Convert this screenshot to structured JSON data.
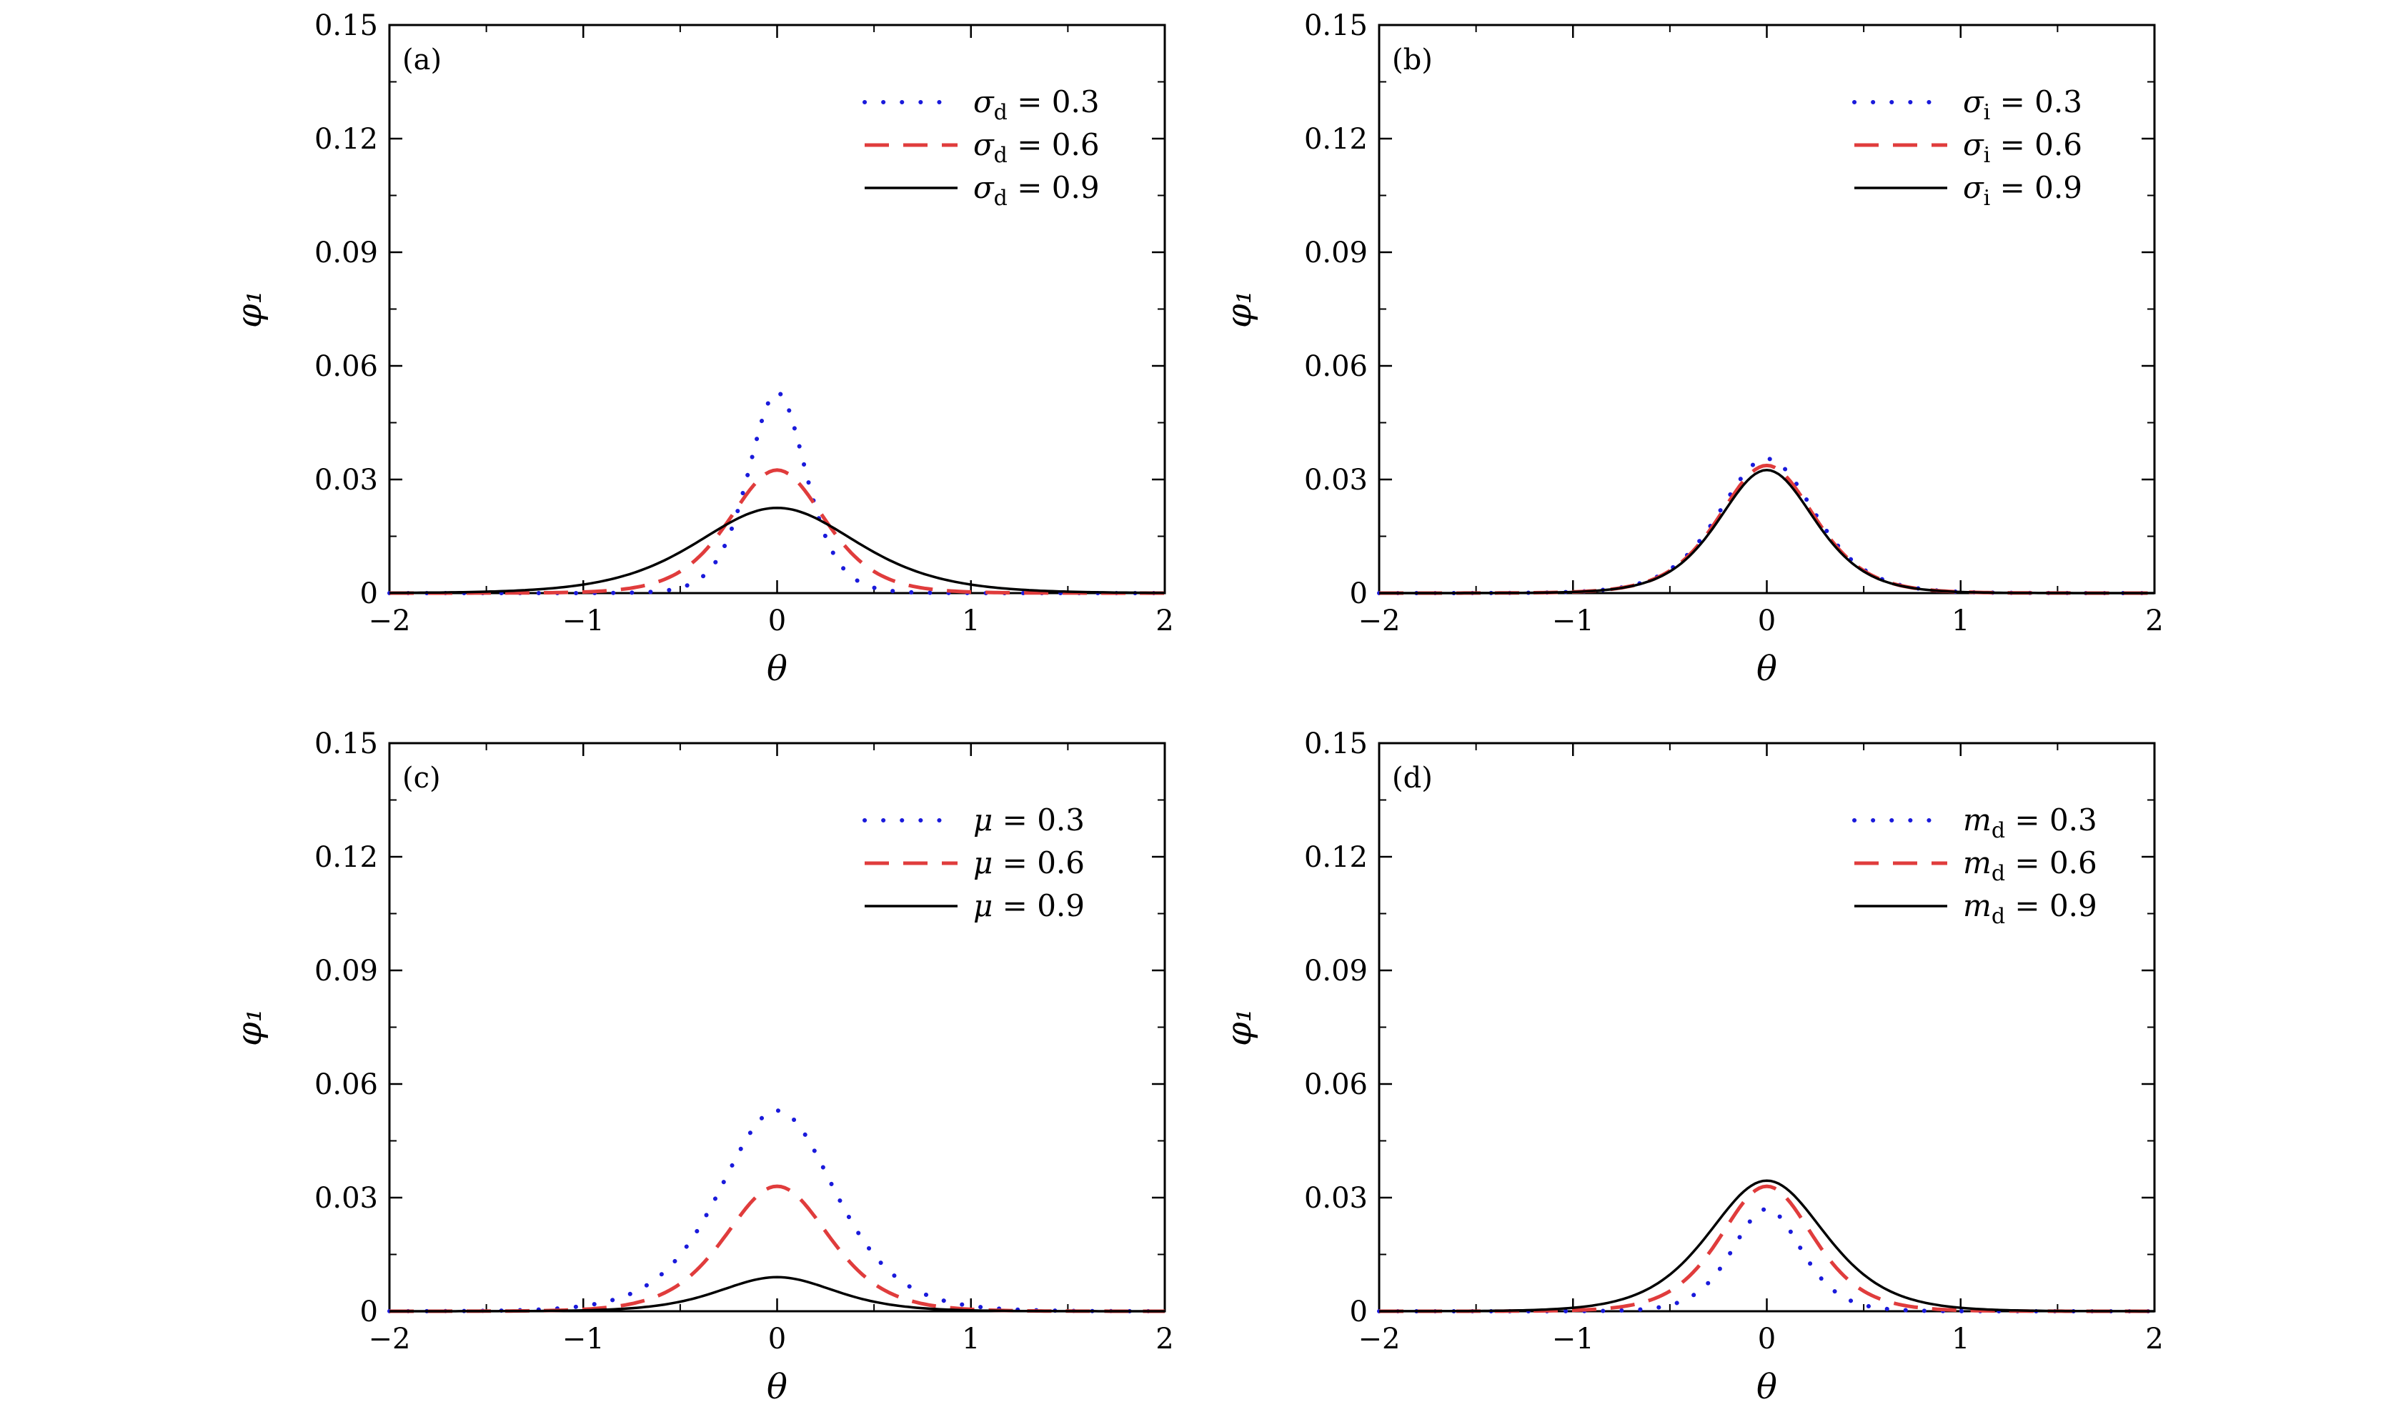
{
  "chart_data": [
    {
      "type": "line",
      "panel": "(a)",
      "xlabel": "θ",
      "ylabel": "φ₁",
      "xlim": [
        -2,
        2
      ],
      "ylim": [
        0,
        0.15
      ],
      "xticks": [
        -2,
        -1,
        0,
        1,
        2
      ],
      "xtick_labels": [
        "−2",
        "−1",
        "0",
        "1",
        "2"
      ],
      "yticks": [
        0,
        0.03,
        0.06,
        0.09,
        0.12,
        0.15
      ],
      "ytick_labels": [
        "0",
        "0.03",
        "0.06",
        "0.09",
        "0.12",
        "0.15"
      ],
      "legend_position": "top-right",
      "grid": false,
      "series": [
        {
          "name": "σd = 0.3",
          "style": "dotted",
          "color": "#1a1adb",
          "peak": 0.053,
          "width": 0.2
        },
        {
          "name": "σd = 0.6",
          "style": "dashed",
          "color": "#e03c3c",
          "peak": 0.0325,
          "width": 0.33
        },
        {
          "name": "σd = 0.9",
          "style": "solid",
          "color": "#000000",
          "peak": 0.0225,
          "width": 0.55
        }
      ]
    },
    {
      "type": "line",
      "panel": "(b)",
      "xlabel": "θ",
      "ylabel": "φ₁",
      "xlim": [
        -2,
        2
      ],
      "ylim": [
        0,
        0.15
      ],
      "xticks": [
        -2,
        -1,
        0,
        1,
        2
      ],
      "xtick_labels": [
        "−2",
        "−1",
        "0",
        "1",
        "2"
      ],
      "yticks": [
        0,
        0.03,
        0.06,
        0.09,
        0.12,
        0.15
      ],
      "ytick_labels": [
        "0",
        "0.03",
        "0.06",
        "0.09",
        "0.12",
        "0.15"
      ],
      "legend_position": "top-right",
      "grid": false,
      "series": [
        {
          "name": "σi = 0.3",
          "style": "dotted",
          "color": "#1a1adb",
          "peak": 0.0355,
          "width": 0.33
        },
        {
          "name": "σi = 0.6",
          "style": "dashed",
          "color": "#e03c3c",
          "peak": 0.0337,
          "width": 0.33
        },
        {
          "name": "σi = 0.9",
          "style": "solid",
          "color": "#000000",
          "peak": 0.0325,
          "width": 0.33
        }
      ]
    },
    {
      "type": "line",
      "panel": "(c)",
      "xlabel": "θ",
      "ylabel": "φ₁",
      "xlim": [
        -2,
        2
      ],
      "ylim": [
        0,
        0.15
      ],
      "xticks": [
        -2,
        -1,
        0,
        1,
        2
      ],
      "xtick_labels": [
        "−2",
        "−1",
        "0",
        "1",
        "2"
      ],
      "yticks": [
        0,
        0.03,
        0.06,
        0.09,
        0.12,
        0.15
      ],
      "ytick_labels": [
        "0",
        "0.03",
        "0.06",
        "0.09",
        "0.12",
        "0.15"
      ],
      "legend_position": "top-right",
      "grid": false,
      "series": [
        {
          "name": "μ = 0.3",
          "style": "dotted",
          "color": "#1a1adb",
          "peak": 0.053,
          "width": 0.4
        },
        {
          "name": "μ = 0.6",
          "style": "dashed",
          "color": "#e03c3c",
          "peak": 0.033,
          "width": 0.36
        },
        {
          "name": "μ = 0.9",
          "style": "solid",
          "color": "#000000",
          "peak": 0.009,
          "width": 0.4
        }
      ]
    },
    {
      "type": "line",
      "panel": "(d)",
      "xlabel": "θ",
      "ylabel": "φ₁",
      "xlim": [
        -2,
        2
      ],
      "ylim": [
        0,
        0.15
      ],
      "xticks": [
        -2,
        -1,
        0,
        1,
        2
      ],
      "xtick_labels": [
        "−2",
        "−1",
        "0",
        "1",
        "2"
      ],
      "yticks": [
        0,
        0.03,
        0.06,
        0.09,
        0.12,
        0.15
      ],
      "ytick_labels": [
        "0",
        "0.03",
        "0.06",
        "0.09",
        "0.12",
        "0.15"
      ],
      "legend_position": "top-right",
      "grid": false,
      "series": [
        {
          "name": "md = 0.3",
          "style": "dotted",
          "color": "#1a1adb",
          "peak": 0.027,
          "width": 0.24
        },
        {
          "name": "md = 0.6",
          "style": "dashed",
          "color": "#e03c3c",
          "peak": 0.033,
          "width": 0.32
        },
        {
          "name": "md = 0.9",
          "style": "solid",
          "color": "#000000",
          "peak": 0.0345,
          "width": 0.4
        }
      ]
    }
  ]
}
